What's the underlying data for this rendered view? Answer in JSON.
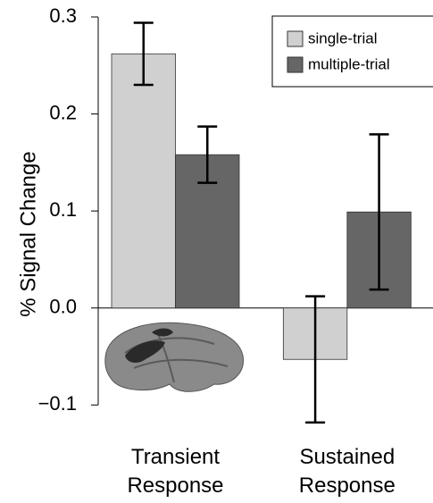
{
  "chart_data": {
    "type": "bar",
    "ylabel": "% Signal Change",
    "categories": [
      "Transient Response",
      "Sustained Response"
    ],
    "series": [
      {
        "name": "single-trial",
        "color": "#d0d0d0",
        "values": [
          0.262,
          -0.053
        ],
        "errors": [
          0.032,
          0.065
        ]
      },
      {
        "name": "multiple-trial",
        "color": "#666666",
        "values": [
          0.158,
          0.099
        ],
        "errors": [
          0.029,
          0.08
        ]
      }
    ],
    "ylim": [
      -0.12,
      0.3
    ],
    "yticks": [
      {
        "value": -0.1,
        "label": "−0.1"
      },
      {
        "value": 0,
        "label": "0.0"
      },
      0.1,
      0.2,
      0.3
    ],
    "legend": "top-right"
  }
}
